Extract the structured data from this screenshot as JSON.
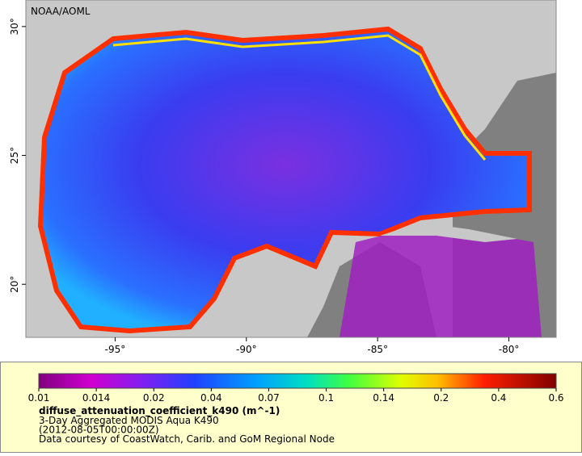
{
  "map": {
    "title": "NOAA/AOML",
    "xlim": [
      -98.4,
      -78.2
    ],
    "ylim": [
      17.94,
      31.03
    ],
    "xticks": [
      {
        "value": -95,
        "label": "-95°"
      },
      {
        "value": -90,
        "label": "-90°"
      },
      {
        "value": -85,
        "label": "-85°"
      },
      {
        "value": -80,
        "label": "-80°"
      }
    ],
    "yticks": [
      {
        "value": 20,
        "label": "20°"
      },
      {
        "value": 25,
        "label": "25°"
      },
      {
        "value": 30,
        "label": "30°"
      }
    ]
  },
  "legend": {
    "ticks": [
      0.01,
      0.014,
      0.02,
      0.04,
      0.07,
      0.1,
      0.14,
      0.2,
      0.4,
      0.6
    ],
    "variable": "diffuse_attenuation_coefficient_k490 (m^-1)",
    "lines": [
      "3-Day Aggregated MODIS Aqua K490",
      "(2012-08-05T00:00:00Z)",
      "Data courtesy of CoastWatch, Carib. and GoM Regional Node"
    ]
  }
}
